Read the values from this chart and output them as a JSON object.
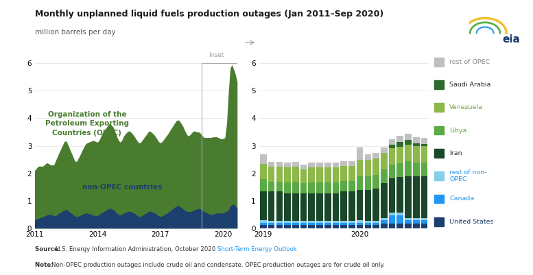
{
  "title": "Monthly unplanned liquid fuels production outages (Jan 2011–Sep 2020)",
  "subtitle": "million barrels per day",
  "opec_color": "#4a7c2f",
  "non_opec_color": "#1b3f6e",
  "opec_label": "Organization of the\nPetroleum Exporting\nCountries (OPEC)",
  "non_opec_label": "non-OPEC countries",
  "non_opec": [
    0.3,
    0.32,
    0.35,
    0.38,
    0.4,
    0.42,
    0.45,
    0.48,
    0.5,
    0.5,
    0.48,
    0.45,
    0.45,
    0.5,
    0.55,
    0.58,
    0.62,
    0.65,
    0.68,
    0.65,
    0.6,
    0.55,
    0.5,
    0.45,
    0.42,
    0.44,
    0.46,
    0.5,
    0.52,
    0.55,
    0.55,
    0.53,
    0.5,
    0.48,
    0.47,
    0.45,
    0.45,
    0.5,
    0.55,
    0.58,
    0.62,
    0.65,
    0.7,
    0.72,
    0.7,
    0.68,
    0.62,
    0.55,
    0.5,
    0.48,
    0.5,
    0.55,
    0.58,
    0.6,
    0.62,
    0.6,
    0.58,
    0.55,
    0.5,
    0.45,
    0.42,
    0.44,
    0.48,
    0.52,
    0.55,
    0.6,
    0.62,
    0.6,
    0.58,
    0.55,
    0.5,
    0.45,
    0.42,
    0.45,
    0.48,
    0.52,
    0.55,
    0.6,
    0.65,
    0.7,
    0.75,
    0.8,
    0.82,
    0.8,
    0.75,
    0.7,
    0.65,
    0.62,
    0.6,
    0.6,
    0.62,
    0.65,
    0.68,
    0.7,
    0.72,
    0.7,
    0.65,
    0.6,
    0.58,
    0.55,
    0.52,
    0.5,
    0.5,
    0.52,
    0.55,
    0.55,
    0.55,
    0.55,
    0.55,
    0.58,
    0.62,
    0.65,
    0.82,
    0.85,
    0.88,
    0.8,
    0.72
  ],
  "opec": [
    1.8,
    1.85,
    1.9,
    1.88,
    1.85,
    1.85,
    1.88,
    1.9,
    1.85,
    1.8,
    1.82,
    1.85,
    2.0,
    2.1,
    2.2,
    2.3,
    2.4,
    2.5,
    2.5,
    2.4,
    2.3,
    2.2,
    2.1,
    2.0,
    2.0,
    2.1,
    2.2,
    2.3,
    2.4,
    2.5,
    2.55,
    2.6,
    2.65,
    2.7,
    2.72,
    2.7,
    2.68,
    2.7,
    2.8,
    2.9,
    2.95,
    3.0,
    3.05,
    3.1,
    3.05,
    3.0,
    2.9,
    2.8,
    2.7,
    2.65,
    2.7,
    2.8,
    2.85,
    2.9,
    2.92,
    2.9,
    2.85,
    2.8,
    2.75,
    2.7,
    2.68,
    2.7,
    2.75,
    2.8,
    2.85,
    2.9,
    2.92,
    2.88,
    2.85,
    2.8,
    2.75,
    2.7,
    2.68,
    2.7,
    2.75,
    2.8,
    2.85,
    2.9,
    2.95,
    3.0,
    3.05,
    3.1,
    3.12,
    3.1,
    3.05,
    3.0,
    2.9,
    2.8,
    2.75,
    2.8,
    2.85,
    2.88,
    2.85,
    2.8,
    2.78,
    2.75,
    2.72,
    2.7,
    2.72,
    2.75,
    2.78,
    2.8,
    2.82,
    2.8,
    2.78,
    2.75,
    2.72,
    2.7,
    2.7,
    2.72,
    3.2,
    4.3,
    5.0,
    5.1,
    4.9,
    4.8,
    4.6
  ],
  "inset_bar_data": [
    {
      "label": "United States",
      "color": "#1b3f6e",
      "values": [
        0.12,
        0.12,
        0.12,
        0.12,
        0.12,
        0.12,
        0.12,
        0.12,
        0.12,
        0.12,
        0.12,
        0.12,
        0.12,
        0.12,
        0.12,
        0.18,
        0.18,
        0.18,
        0.18,
        0.18,
        0.18
      ]
    },
    {
      "label": "Canada",
      "color": "#2196f3",
      "values": [
        0.08,
        0.08,
        0.08,
        0.08,
        0.08,
        0.08,
        0.08,
        0.08,
        0.08,
        0.08,
        0.08,
        0.08,
        0.08,
        0.08,
        0.08,
        0.12,
        0.3,
        0.3,
        0.12,
        0.12,
        0.12
      ]
    },
    {
      "label": "rest of non-OPEC",
      "color": "#87ceeb",
      "values": [
        0.1,
        0.08,
        0.08,
        0.08,
        0.08,
        0.08,
        0.08,
        0.08,
        0.08,
        0.08,
        0.08,
        0.08,
        0.1,
        0.08,
        0.08,
        0.08,
        0.08,
        0.08,
        0.08,
        0.08,
        0.08
      ]
    },
    {
      "label": "Iran",
      "color": "#1a472a",
      "values": [
        1.05,
        1.05,
        1.05,
        1.0,
        1.0,
        1.0,
        1.0,
        1.0,
        1.0,
        1.0,
        1.05,
        1.05,
        1.1,
        1.1,
        1.15,
        1.25,
        1.25,
        1.3,
        1.5,
        1.5,
        1.5
      ]
    },
    {
      "label": "Libya",
      "color": "#5aaa46",
      "values": [
        0.45,
        0.35,
        0.35,
        0.38,
        0.4,
        0.35,
        0.38,
        0.38,
        0.38,
        0.38,
        0.38,
        0.38,
        0.5,
        0.5,
        0.5,
        0.5,
        0.5,
        0.5,
        0.55,
        0.5,
        0.5
      ]
    },
    {
      "label": "Venezuela",
      "color": "#8db84a",
      "values": [
        0.55,
        0.55,
        0.55,
        0.55,
        0.55,
        0.5,
        0.55,
        0.55,
        0.55,
        0.55,
        0.55,
        0.55,
        0.6,
        0.6,
        0.6,
        0.6,
        0.6,
        0.6,
        0.6,
        0.6,
        0.6
      ]
    },
    {
      "label": "Saudi Arabia",
      "color": "#2d6a2d",
      "values": [
        0.0,
        0.0,
        0.0,
        0.0,
        0.0,
        0.0,
        0.0,
        0.0,
        0.0,
        0.0,
        0.0,
        0.0,
        0.0,
        0.0,
        0.0,
        0.0,
        0.12,
        0.18,
        0.18,
        0.12,
        0.08
      ]
    },
    {
      "label": "rest of OPEC",
      "color": "#c0c0c0",
      "values": [
        0.35,
        0.18,
        0.18,
        0.18,
        0.18,
        0.18,
        0.18,
        0.18,
        0.18,
        0.18,
        0.18,
        0.18,
        0.45,
        0.22,
        0.22,
        0.22,
        0.22,
        0.22,
        0.22,
        0.22,
        0.22
      ]
    }
  ],
  "legend": [
    {
      "label": "rest of OPEC",
      "color": "#c0c0c0",
      "text_color": "#888888"
    },
    {
      "label": "Saudi Arabia",
      "color": "#2d6a2d",
      "text_color": "#2d2d2d"
    },
    {
      "label": "Venezuela",
      "color": "#8db84a",
      "text_color": "#7a9e3b"
    },
    {
      "label": "Libya",
      "color": "#5aaa46",
      "text_color": "#5aaa46"
    },
    {
      "label": "Iran",
      "color": "#1a472a",
      "text_color": "#2d2d2d"
    },
    {
      "label": "rest of non-\nOPEC",
      "color": "#87ceeb",
      "text_color": "#2196f3"
    },
    {
      "label": "Canada",
      "color": "#2196f3",
      "text_color": "#2196f3"
    },
    {
      "label": "United States",
      "color": "#1b3f6e",
      "text_color": "#1b3f6e"
    }
  ],
  "background_color": "#ffffff",
  "grid_color": "#e0e0e0"
}
